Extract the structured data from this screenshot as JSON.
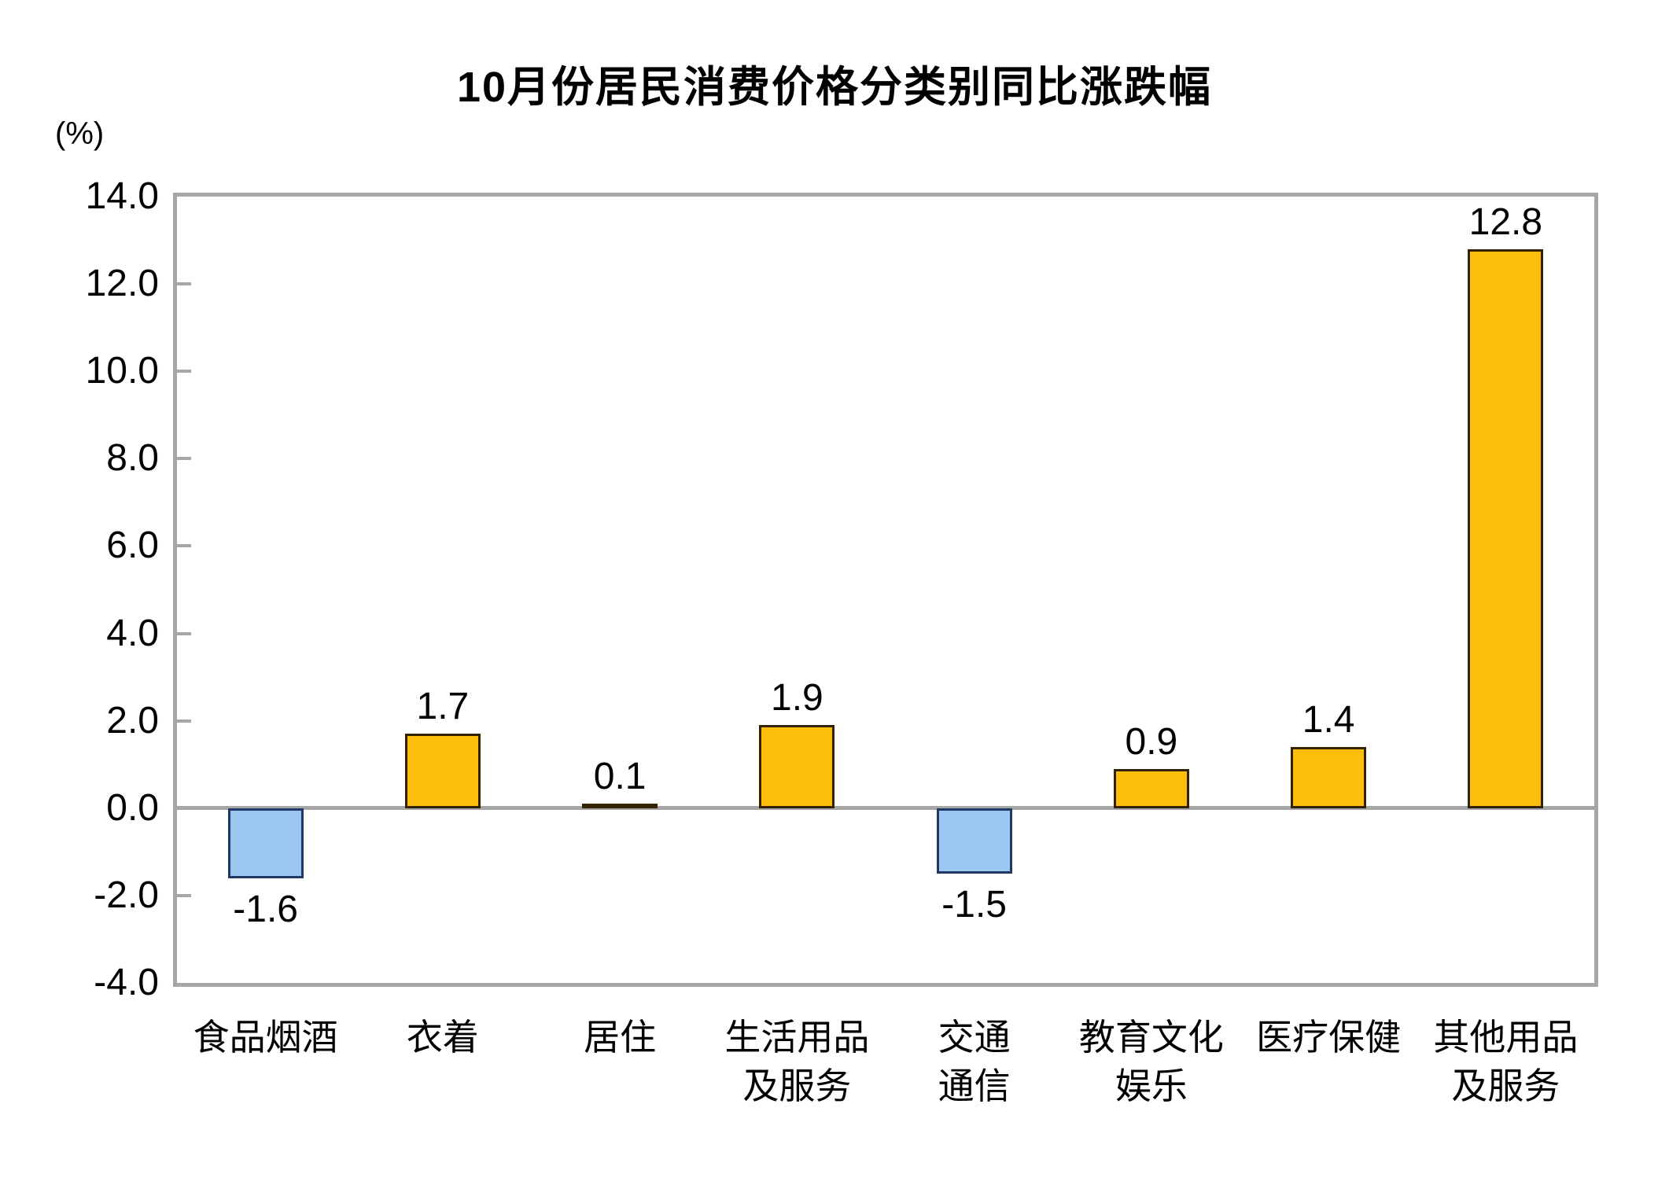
{
  "chart_data": {
    "type": "bar",
    "title": "10月份居民消费价格分类别同比涨跌幅",
    "unit_label": "(%)",
    "categories": [
      "食品烟酒",
      "衣着",
      "居住",
      "生活用品及服务",
      "交通通信",
      "教育文化娱乐",
      "医疗保健",
      "其他用品及服务"
    ],
    "category_lines": [
      [
        "食品烟酒"
      ],
      [
        "衣着"
      ],
      [
        "居住"
      ],
      [
        "生活用品",
        "及服务"
      ],
      [
        "交通",
        "通信"
      ],
      [
        "教育文化",
        "娱乐"
      ],
      [
        "医疗保健"
      ],
      [
        "其他用品",
        "及服务"
      ]
    ],
    "values": [
      -1.6,
      1.7,
      0.1,
      1.9,
      -1.5,
      0.9,
      1.4,
      12.8
    ],
    "value_labels": [
      "-1.6",
      "1.7",
      "0.1",
      "1.9",
      "-1.5",
      "0.9",
      "1.4",
      "12.8"
    ],
    "xlabel": "",
    "ylabel": "(%)",
    "ylim": [
      -4.0,
      14.0
    ],
    "ytick_step": 2.0,
    "yticks": [
      "14.0",
      "12.0",
      "10.0",
      "8.0",
      "6.0",
      "4.0",
      "2.0",
      "0.0",
      "-2.0",
      "-4.0"
    ],
    "grid": false,
    "legend_position": "none",
    "colors": {
      "positive_fill": "#FCBD0B",
      "positive_border": "#332200",
      "negative_fill": "#9CC7F2",
      "negative_border": "#1F3864",
      "axis": "#A6A6A6",
      "text": "#000000",
      "background": "#FFFFFF"
    }
  }
}
